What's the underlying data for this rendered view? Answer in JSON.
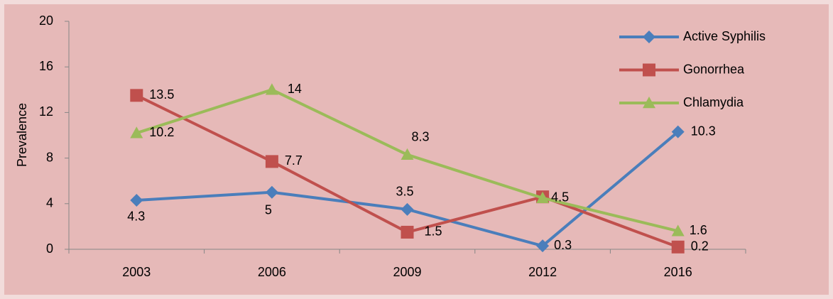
{
  "chart_data": {
    "type": "line",
    "y_label": "Prevalence",
    "categories": [
      "2003",
      "2006",
      "2009",
      "2012",
      "2016"
    ],
    "series": [
      {
        "name": "Active Syphilis",
        "color": "#4a7ebb",
        "marker": "diamond",
        "label_color": "#000000",
        "values": [
          4.3,
          5,
          3.5,
          0.3,
          10.3
        ]
      },
      {
        "name": "Gonorrhea",
        "color": "#c0504d",
        "marker": "square",
        "label_color": "#000000",
        "values": [
          13.5,
          7.7,
          1.5,
          4.6,
          0.2
        ],
        "value_labels": [
          "13.5",
          "7.7",
          "1.5",
          null,
          "0.2"
        ]
      },
      {
        "name": "Chlamydia",
        "color": "#9bbb59",
        "marker": "triangle",
        "label_color": "#00b050",
        "values": [
          10.2,
          14,
          8.3,
          4.5,
          1.6
        ]
      }
    ],
    "ylim": [
      0,
      20
    ],
    "yticks": [
      0,
      4,
      8,
      12,
      16,
      20
    ],
    "legend": "top-right"
  }
}
